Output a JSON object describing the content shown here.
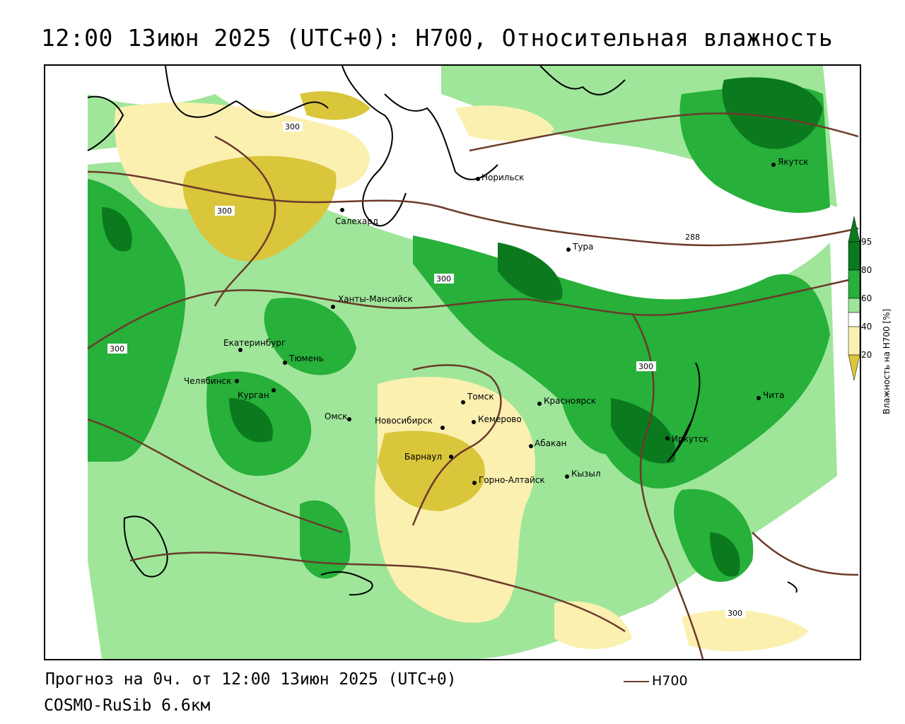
{
  "title": "12:00 13июн 2025 (UTC+0): H700, Относительная влажность",
  "footer": {
    "forecast": "Прогноз на 0ч. от 12:00 13июн 2025 (UTC+0)",
    "model": "COSMO-RuSib 6.6км",
    "legend_h700": "H700"
  },
  "colorbar": {
    "label": "Влажность на H700 [%]",
    "ticks": [
      "95",
      "80",
      "60",
      "40",
      "20"
    ],
    "colors": {
      "c95": "#0b7a1e",
      "c80": "#27b03a",
      "c60": "#9fe69a",
      "c50": "#ffffff",
      "c40": "#fbf0b0",
      "c20": "#d9c63a"
    }
  },
  "contour_labels": [
    "300",
    "300",
    "300",
    "288",
    "300",
    "300",
    "300"
  ],
  "cities": [
    {
      "id": "norilsk",
      "name": "Норильск"
    },
    {
      "id": "yakutsk",
      "name": "Якутск"
    },
    {
      "id": "salekhard",
      "name": "Салехард"
    },
    {
      "id": "tura",
      "name": "Тура"
    },
    {
      "id": "khanty",
      "name": "Ханты-Мансийск"
    },
    {
      "id": "ekb",
      "name": "Екатеринбург"
    },
    {
      "id": "tyumen",
      "name": "Тюмень"
    },
    {
      "id": "chel",
      "name": "Челябинск"
    },
    {
      "id": "kurgan",
      "name": "Курган"
    },
    {
      "id": "omsk",
      "name": "Омск"
    },
    {
      "id": "nsk",
      "name": "Новосибирск"
    },
    {
      "id": "tomsk",
      "name": "Томск"
    },
    {
      "id": "kemerovo",
      "name": "Кемерово"
    },
    {
      "id": "krsk",
      "name": "Красноярск"
    },
    {
      "id": "barnaul",
      "name": "Барнаул"
    },
    {
      "id": "abakan",
      "name": "Абакан"
    },
    {
      "id": "gorno",
      "name": "Горно-Алтайск"
    },
    {
      "id": "kyzyl",
      "name": "Кызыл"
    },
    {
      "id": "irkutsk",
      "name": "Иркутск"
    },
    {
      "id": "chita",
      "name": "Чита"
    }
  ]
}
